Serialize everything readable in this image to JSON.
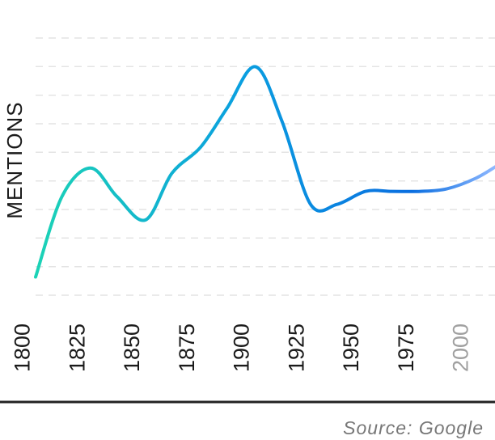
{
  "chart_data": {
    "type": "line",
    "title": "",
    "xlabel": "",
    "ylabel": "MENTIONS",
    "x_ticks": [
      1800,
      1825,
      1850,
      1875,
      1900,
      1925,
      1950,
      1975,
      2000
    ],
    "x_ticks_muted": [
      2000
    ],
    "xlim": [
      1800,
      2010
    ],
    "ylim": [
      0,
      100
    ],
    "grid": true,
    "y_tick_labels_shown": false,
    "series": [
      {
        "x": [
          1800,
          1812,
          1825,
          1837,
          1850,
          1862,
          1875,
          1887,
          1900,
          1912,
          1925,
          1937,
          1950,
          1962,
          1975,
          1987,
          2000,
          2010
        ],
        "y": [
          7,
          38,
          49,
          38,
          29,
          47,
          57,
          72,
          88,
          67,
          35,
          35,
          40,
          40,
          40,
          41,
          45,
          50
        ]
      }
    ],
    "gradient_colors": [
      "#1cd3b6",
      "#0a9fe0",
      "#0a6ee0",
      "#8fb8ff"
    ]
  },
  "source": {
    "text": "Source: Google"
  }
}
